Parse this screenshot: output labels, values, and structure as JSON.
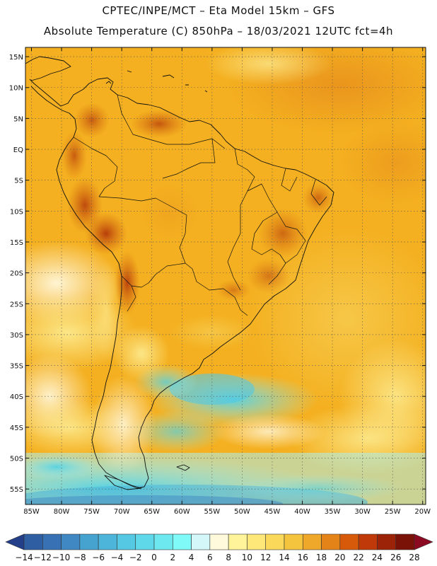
{
  "title": {
    "line1": "CPTEC/INPE/MCT –   Eta Model 15km – GFS",
    "line2": "Absolute Temperature (C) 850hPa – 18/03/2021 12UTC fct=4h"
  },
  "map": {
    "lon_range": [
      -86,
      -19.5
    ],
    "lat_range": [
      -57.5,
      16.5
    ],
    "lon_ticks": [
      "85W",
      "80W",
      "75W",
      "70W",
      "65W",
      "60W",
      "55W",
      "50W",
      "45W",
      "40W",
      "35W",
      "30W",
      "25W",
      "20W"
    ],
    "lat_ticks": [
      "15N",
      "10N",
      "5N",
      "EQ",
      "5S",
      "10S",
      "15S",
      "20S",
      "25S",
      "30S",
      "35S",
      "40S",
      "45S",
      "50S",
      "55S"
    ],
    "ocean_color": "#f4b020"
  },
  "colorbar": {
    "labels": [
      "-14",
      "-12",
      "-10",
      "-8",
      "-6",
      "-4",
      "-2",
      "0",
      "2",
      "4",
      "6",
      "8",
      "10",
      "12",
      "14",
      "16",
      "18",
      "20",
      "22",
      "24",
      "26",
      "28"
    ],
    "colors": [
      "#233f8a",
      "#2f5ea3",
      "#3872b4",
      "#3f88c3",
      "#46a2cf",
      "#4cb5d9",
      "#55c8e3",
      "#5fd8ea",
      "#6de8ef",
      "#7ffaf8",
      "#d4f8fa",
      "#fffadc",
      "#fff49a",
      "#fde879",
      "#f9d85a",
      "#f5c43e",
      "#f0a82a",
      "#e48418",
      "#d75a0a",
      "#bf3a08",
      "#9c2208",
      "#7a1208",
      "#8b0a22"
    ]
  }
}
